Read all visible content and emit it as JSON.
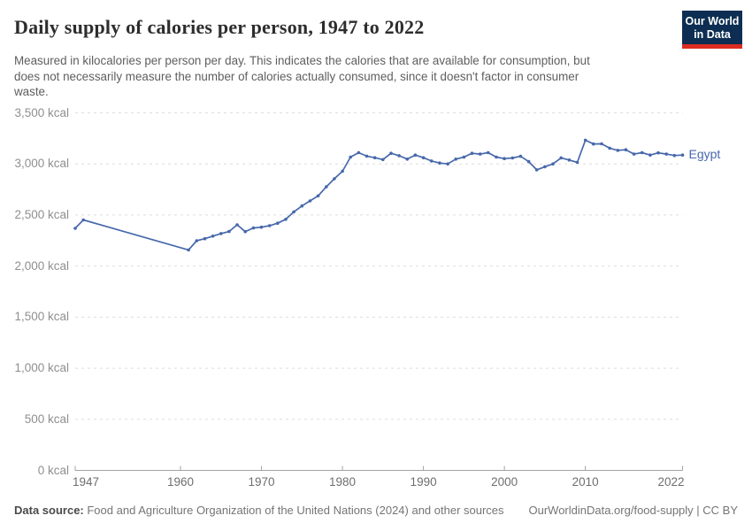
{
  "header": {
    "title": "Daily supply of calories per person, 1947 to 2022",
    "subtitle_lines": [
      "Measured in kilocalories per person per day. This indicates the calories that are available for consumption, but",
      "does not necessarily measure the number of calories actually consumed, since it doesn't factor in consumer",
      "waste."
    ],
    "logo": {
      "line1": "Our World",
      "line2": "in Data",
      "bg_color": "#0d2e52",
      "bar_color": "#dc2c20"
    }
  },
  "chart_data": {
    "type": "line",
    "title": "Daily supply of calories per person, 1947 to 2022",
    "unit": "kcal",
    "xlabel": "",
    "ylabel": "kcal per person per day",
    "xlim": [
      1947,
      2022
    ],
    "ylim": [
      0,
      3500
    ],
    "grid": "horizontal-dashed",
    "legend_position": "end-of-line",
    "x_ticks": [
      {
        "year": 1947,
        "label": "1947"
      },
      {
        "year": 1960,
        "label": "1960"
      },
      {
        "year": 1970,
        "label": "1970"
      },
      {
        "year": 1980,
        "label": "1980"
      },
      {
        "year": 1990,
        "label": "1990"
      },
      {
        "year": 2000,
        "label": "2000"
      },
      {
        "year": 2010,
        "label": "2010"
      },
      {
        "year": 2022,
        "label": "2022"
      }
    ],
    "y_ticks": [
      {
        "value": 0,
        "label": "0 kcal"
      },
      {
        "value": 500,
        "label": "500 kcal"
      },
      {
        "value": 1000,
        "label": "1,000 kcal"
      },
      {
        "value": 1500,
        "label": "1,500 kcal"
      },
      {
        "value": 2000,
        "label": "2,000 kcal"
      },
      {
        "value": 2500,
        "label": "2,500 kcal"
      },
      {
        "value": 3000,
        "label": "3,000 kcal"
      },
      {
        "value": 3500,
        "label": "3,500 kcal"
      }
    ],
    "series": [
      {
        "name": "Egypt",
        "color": "#4768ab",
        "points": [
          [
            1947,
            2369
          ],
          [
            1948,
            2452
          ],
          [
            1961,
            2158
          ],
          [
            1962,
            2248
          ],
          [
            1963,
            2268
          ],
          [
            1964,
            2293
          ],
          [
            1965,
            2318
          ],
          [
            1966,
            2338
          ],
          [
            1967,
            2404
          ],
          [
            1968,
            2337
          ],
          [
            1969,
            2373
          ],
          [
            1970,
            2381
          ],
          [
            1971,
            2395
          ],
          [
            1972,
            2420
          ],
          [
            1973,
            2458
          ],
          [
            1974,
            2531
          ],
          [
            1975,
            2589
          ],
          [
            1976,
            2638
          ],
          [
            1977,
            2687
          ],
          [
            1978,
            2776
          ],
          [
            1979,
            2855
          ],
          [
            1980,
            2928
          ],
          [
            1981,
            3067
          ],
          [
            1982,
            3110
          ],
          [
            1983,
            3076
          ],
          [
            1984,
            3061
          ],
          [
            1985,
            3043
          ],
          [
            1986,
            3104
          ],
          [
            1987,
            3081
          ],
          [
            1988,
            3047
          ],
          [
            1989,
            3087
          ],
          [
            1990,
            3061
          ],
          [
            1991,
            3029
          ],
          [
            1992,
            3009
          ],
          [
            1993,
            3000
          ],
          [
            1994,
            3047
          ],
          [
            1995,
            3067
          ],
          [
            1996,
            3104
          ],
          [
            1997,
            3096
          ],
          [
            1998,
            3110
          ],
          [
            1999,
            3067
          ],
          [
            2000,
            3052
          ],
          [
            2001,
            3058
          ],
          [
            2002,
            3075
          ],
          [
            2003,
            3023
          ],
          [
            2004,
            2942
          ],
          [
            2005,
            2972
          ],
          [
            2006,
            3000
          ],
          [
            2007,
            3059
          ],
          [
            2008,
            3038
          ],
          [
            2009,
            3015
          ],
          [
            2010,
            3232
          ],
          [
            2011,
            3195
          ],
          [
            2012,
            3197
          ],
          [
            2013,
            3154
          ],
          [
            2014,
            3133
          ],
          [
            2015,
            3139
          ],
          [
            2016,
            3096
          ],
          [
            2017,
            3110
          ],
          [
            2018,
            3087
          ],
          [
            2019,
            3108
          ],
          [
            2020,
            3096
          ],
          [
            2021,
            3082
          ],
          [
            2022,
            3087
          ]
        ]
      }
    ]
  },
  "footer": {
    "source_label": "Data source:",
    "source_text": " Food and Agriculture Organization of the United Nations (2024) and other sources",
    "credit": "OurWorldinData.org/food-supply | CC BY"
  }
}
